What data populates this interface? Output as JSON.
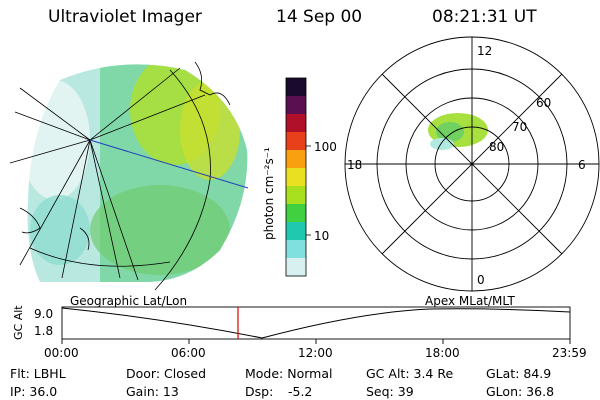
{
  "header": {
    "title": "Ultraviolet Imager",
    "date": "14 Sep 00",
    "time": "08:21:31 UT"
  },
  "colorbar": {
    "unit_label": "photon cm⁻²s⁻¹",
    "ticks": [
      "100",
      "10"
    ],
    "colors": [
      "#1a0a2e",
      "#5a1050",
      "#b0102a",
      "#e8401a",
      "#f8a010",
      "#e8e020",
      "#a8e020",
      "#40d040",
      "#20c8b0",
      "#80e0e0",
      "#d8f0f0"
    ]
  },
  "polar_plot": {
    "labels": {
      "top": "12",
      "bottom": "0",
      "left": "18",
      "right": "6",
      "r60": "60",
      "r70": "70",
      "r80": "80"
    }
  },
  "timeline": {
    "left_title": "Geographic Lat/Lon",
    "right_title": "Apex MLat/MLT",
    "y_axis_label": "GC Alt",
    "y_ticks": [
      "9.0",
      "1.8"
    ],
    "x_ticks": [
      "00:00",
      "06:00",
      "12:00",
      "18:00",
      "23:59"
    ],
    "marker_color": "#e00000"
  },
  "info": {
    "filter": "Flt: LBHL",
    "door": "Door: Closed",
    "mode": "Mode: Normal",
    "gc_alt": "GC Alt: 3.4 Re",
    "glat": "GLat: 84.9",
    "ip": "IP: 36.0",
    "gain": "Gain: 13",
    "dsp_label": "Dsp:",
    "dsp_value": "-5.2",
    "seq": "Seq: 39",
    "glon": "GLon: 36.8"
  }
}
